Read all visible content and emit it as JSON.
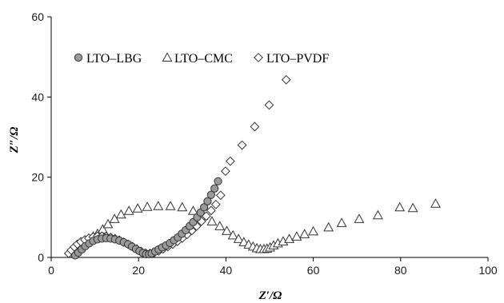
{
  "chart_data": {
    "type": "scatter",
    "title": "",
    "xlabel": "Z′/Ω",
    "ylabel": "Z″/Ω",
    "xlim": [
      0,
      100
    ],
    "ylim": [
      0,
      60
    ],
    "xticks": [
      0,
      20,
      40,
      60,
      80,
      100
    ],
    "yticks": [
      0,
      20,
      40,
      60
    ],
    "xtick_labels": [
      "0",
      "20",
      "40",
      "60",
      "80",
      "100"
    ],
    "ytick_labels": [
      "0",
      "20",
      "40",
      "60"
    ],
    "grid": false,
    "legend_placement": "top-left",
    "series": [
      {
        "name": "LTO–LBG",
        "marker": "circle",
        "color": "#9a9a9a",
        "x": [
          5.5,
          6.2,
          7.0,
          7.8,
          8.7,
          9.6,
          10.6,
          11.6,
          12.6,
          13.6,
          14.6,
          15.6,
          16.6,
          17.6,
          18.5,
          19.4,
          20.2,
          21.0,
          21.7,
          22.4,
          23.0,
          23.8,
          24.6,
          25.4,
          26.3,
          27.2,
          28.1,
          29.0,
          29.9,
          30.8,
          31.7,
          32.5,
          33.4,
          34.2,
          35.0,
          35.8,
          36.6,
          37.4,
          38.2
        ],
        "y": [
          0.5,
          1.2,
          2.0,
          2.8,
          3.5,
          4.1,
          4.5,
          4.7,
          4.8,
          4.7,
          4.5,
          4.2,
          3.8,
          3.3,
          2.7,
          2.1,
          1.6,
          1.1,
          0.8,
          0.8,
          1.0,
          1.5,
          2.0,
          2.5,
          3.0,
          3.6,
          4.3,
          5.0,
          5.9,
          6.8,
          7.8,
          8.8,
          10.0,
          11.2,
          12.5,
          14.0,
          15.6,
          17.2,
          19.0
        ]
      },
      {
        "name": "LTO–CMC",
        "marker": "triangle",
        "color": "#ffffff",
        "x": [
          5.0,
          5.6,
          6.3,
          7.0,
          7.8,
          8.7,
          9.6,
          10.6,
          11.8,
          13.0,
          14.5,
          16.0,
          17.8,
          19.8,
          22.0,
          24.5,
          27.3,
          30.0,
          32.5,
          34.8,
          36.8,
          38.6,
          40.2,
          41.6,
          42.9,
          44.1,
          45.2,
          46.2,
          47.1,
          47.9,
          48.7,
          49.4,
          50.1,
          50.9,
          51.9,
          53.1,
          54.5,
          56.2,
          58.0,
          60.0,
          63.5,
          66.5,
          70.5,
          74.8,
          79.8,
          82.8,
          88.0
        ],
        "y": [
          1.0,
          1.8,
          2.6,
          3.3,
          4.0,
          4.6,
          5.2,
          5.9,
          7.0,
          8.3,
          9.6,
          10.7,
          11.6,
          12.2,
          12.6,
          12.8,
          12.8,
          12.5,
          11.6,
          10.4,
          9.0,
          7.8,
          6.6,
          5.5,
          4.6,
          3.8,
          3.2,
          2.7,
          2.3,
          2.1,
          2.1,
          2.2,
          2.5,
          3.0,
          3.5,
          4.0,
          4.6,
          5.2,
          5.8,
          6.5,
          7.5,
          8.6,
          9.6,
          10.5,
          12.5,
          12.3,
          13.4
        ]
      },
      {
        "name": "LTO–PVDF",
        "marker": "diamond",
        "color": "#ffffff",
        "x": [
          4.0,
          4.6,
          5.3,
          6.0,
          6.8,
          7.7,
          8.6,
          9.6,
          10.6,
          11.6,
          12.6,
          13.6,
          14.6,
          15.6,
          16.6,
          17.6,
          18.6,
          19.6,
          20.6,
          21.6,
          22.6,
          23.6,
          24.6,
          25.6,
          26.7,
          27.8,
          28.9,
          30.0,
          31.1,
          32.2,
          33.3,
          34.4,
          35.5,
          36.6,
          37.7,
          38.8,
          39.9,
          41.0,
          43.7,
          46.6,
          49.9,
          53.8
        ],
        "y": [
          1.0,
          1.8,
          2.6,
          3.3,
          3.9,
          4.4,
          4.8,
          5.1,
          5.3,
          5.3,
          5.2,
          5.0,
          4.7,
          4.3,
          3.8,
          3.3,
          2.7,
          2.1,
          1.5,
          1.1,
          1.0,
          1.2,
          1.6,
          2.1,
          2.7,
          3.3,
          4.0,
          4.8,
          5.7,
          6.7,
          7.8,
          9.0,
          10.3,
          11.7,
          13.2,
          15.5,
          21.5,
          24.0,
          28.0,
          32.6,
          38.0,
          44.3
        ]
      }
    ]
  }
}
